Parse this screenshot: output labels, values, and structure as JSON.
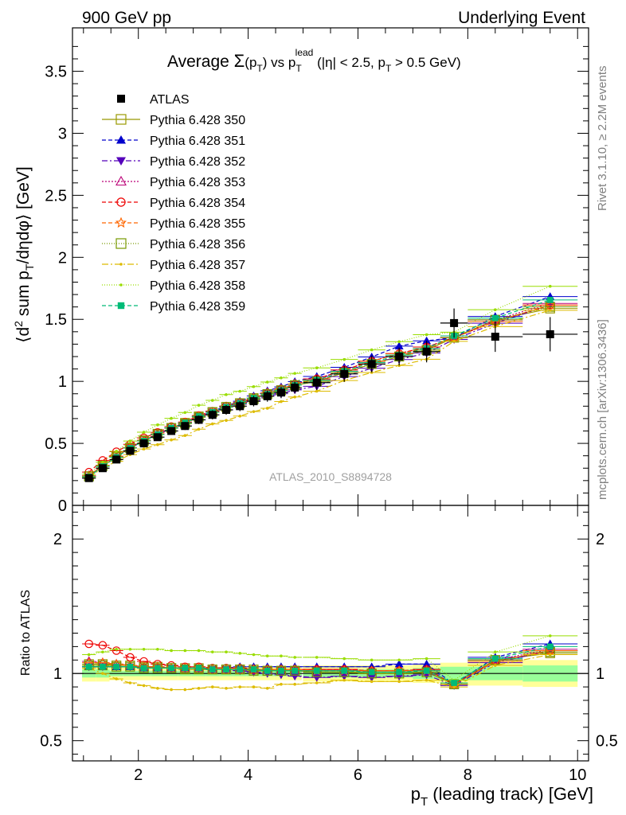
{
  "header": {
    "left": "900 GeV pp",
    "right": "Underlying Event"
  },
  "side": {
    "rivet": "Rivet 3.1.10, ≥ 2.2M events",
    "mcplots": "mcplots.cern.ch [arXiv:1306.3436]"
  },
  "watermark": "ATLAS_2010_S8894728",
  "chart_data": {
    "type": "scatter",
    "title": "Average Σ(p_T) vs p_T^lead (|η| < 2.5, p_T > 0.5 GeV)",
    "xlabel": "p_T (leading track) [GeV]",
    "ylabel": "⟨d² sum p_T/dηdφ⟩ [GeV]",
    "ratio_ylabel": "Ratio to ATLAS",
    "xlim": [
      0.8,
      10.2
    ],
    "ylim": [
      0,
      3.85
    ],
    "ratio_ylim": [
      0.35,
      2.25
    ],
    "xticks": [
      2,
      4,
      6,
      8,
      10
    ],
    "yticks": [
      0,
      0.5,
      1,
      1.5,
      2,
      2.5,
      3,
      3.5
    ],
    "ratio_yticks": [
      0.5,
      1,
      2
    ],
    "grid": false,
    "legend_position": "top-left",
    "x": [
      1.1,
      1.35,
      1.6,
      1.85,
      2.1,
      2.35,
      2.6,
      2.85,
      3.1,
      3.35,
      3.6,
      3.85,
      4.1,
      4.35,
      4.6,
      4.85,
      5.25,
      5.75,
      6.25,
      6.75,
      7.25,
      7.75,
      8.5,
      9.5
    ],
    "xerr": [
      0.125,
      0.125,
      0.125,
      0.125,
      0.125,
      0.125,
      0.125,
      0.125,
      0.125,
      0.125,
      0.125,
      0.125,
      0.125,
      0.125,
      0.125,
      0.125,
      0.25,
      0.25,
      0.25,
      0.25,
      0.25,
      0.25,
      0.5,
      0.5
    ],
    "data": {
      "name": "ATLAS",
      "values": [
        0.22,
        0.3,
        0.37,
        0.44,
        0.5,
        0.55,
        0.6,
        0.64,
        0.69,
        0.73,
        0.77,
        0.8,
        0.84,
        0.88,
        0.91,
        0.95,
        0.99,
        1.06,
        1.14,
        1.2,
        1.24,
        1.47,
        1.36,
        1.38
      ],
      "band_syst": [
        0.06,
        0.06,
        0.05,
        0.05,
        0.05,
        0.05,
        0.05,
        0.05,
        0.05,
        0.05,
        0.05,
        0.05,
        0.05,
        0.05,
        0.05,
        0.05,
        0.06,
        0.06,
        0.06,
        0.06,
        0.07,
        0.08,
        0.09,
        0.1
      ],
      "band_stat": [
        0.03,
        0.03,
        0.02,
        0.02,
        0.02,
        0.02,
        0.02,
        0.02,
        0.02,
        0.02,
        0.02,
        0.02,
        0.02,
        0.02,
        0.02,
        0.02,
        0.03,
        0.03,
        0.03,
        0.03,
        0.04,
        0.05,
        0.05,
        0.06
      ]
    },
    "series": [
      {
        "name": "Pythia 6.428 350",
        "color": "#999900",
        "marker": "square-open",
        "dash": "solid",
        "ratio": [
          1.07,
          1.07,
          1.06,
          1.06,
          1.05,
          1.05,
          1.04,
          1.04,
          1.04,
          1.03,
          1.03,
          1.03,
          1.03,
          1.02,
          1.02,
          1.02,
          1.01,
          1.01,
          1.0,
          1.0,
          1.01,
          0.92,
          1.1,
          1.15
        ]
      },
      {
        "name": "Pythia 6.428 351",
        "color": "#0000cc",
        "marker": "triangle-up",
        "dash": "5,3",
        "ratio": [
          1.05,
          1.05,
          1.05,
          1.05,
          1.04,
          1.04,
          1.04,
          1.04,
          1.04,
          1.04,
          1.04,
          1.05,
          1.05,
          1.05,
          1.05,
          1.05,
          1.05,
          1.05,
          1.05,
          1.07,
          1.07,
          0.92,
          1.12,
          1.22
        ]
      },
      {
        "name": "Pythia 6.428 352",
        "color": "#5500bb",
        "marker": "triangle-down",
        "dash": "7,3,2,3",
        "ratio": [
          1.05,
          1.05,
          1.05,
          1.05,
          1.04,
          1.04,
          1.04,
          1.04,
          1.04,
          1.03,
          1.03,
          1.02,
          1.01,
          1.0,
          0.99,
          0.98,
          0.97,
          0.98,
          0.97,
          0.98,
          0.99,
          0.91,
          1.08,
          1.17
        ]
      },
      {
        "name": "Pythia 6.428 353",
        "color": "#bb0077",
        "marker": "triangle-open",
        "dash": "2,2",
        "ratio": [
          1.09,
          1.08,
          1.07,
          1.06,
          1.05,
          1.05,
          1.04,
          1.04,
          1.04,
          1.03,
          1.03,
          1.03,
          1.03,
          1.03,
          1.03,
          1.03,
          1.03,
          1.03,
          1.02,
          1.02,
          1.03,
          0.92,
          1.1,
          1.18
        ]
      },
      {
        "name": "Pythia 6.428 354",
        "color": "#ee0000",
        "marker": "circle-open",
        "dash": "5,3",
        "ratio": [
          1.22,
          1.21,
          1.17,
          1.12,
          1.09,
          1.07,
          1.06,
          1.05,
          1.05,
          1.04,
          1.04,
          1.04,
          1.03,
          1.03,
          1.03,
          1.03,
          1.03,
          1.03,
          1.02,
          1.02,
          1.03,
          0.92,
          1.09,
          1.17
        ]
      },
      {
        "name": "Pythia 6.428 355",
        "color": "#ff6600",
        "marker": "star-open",
        "dash": "5,3",
        "ratio": [
          1.08,
          1.08,
          1.07,
          1.06,
          1.05,
          1.05,
          1.04,
          1.04,
          1.04,
          1.03,
          1.03,
          1.03,
          1.03,
          1.03,
          1.03,
          1.03,
          1.02,
          1.02,
          1.02,
          1.02,
          1.02,
          0.92,
          1.09,
          1.17
        ]
      },
      {
        "name": "Pythia 6.428 356",
        "color": "#779900",
        "marker": "square-open",
        "dash": "1,2",
        "ratio": [
          1.06,
          1.06,
          1.05,
          1.05,
          1.04,
          1.04,
          1.04,
          1.03,
          1.03,
          1.03,
          1.03,
          1.03,
          1.02,
          1.02,
          1.02,
          1.02,
          1.01,
          1.01,
          1.0,
          1.0,
          1.01,
          0.92,
          1.1,
          1.16
        ]
      },
      {
        "name": "Pythia 6.428 357",
        "color": "#ddbb00",
        "marker": "dot",
        "dash": "8,3,2,3",
        "ratio": [
          1.04,
          1.0,
          0.96,
          0.93,
          0.91,
          0.89,
          0.88,
          0.88,
          0.89,
          0.9,
          0.89,
          0.9,
          0.9,
          0.89,
          0.92,
          0.92,
          0.93,
          0.95,
          0.94,
          0.94,
          0.95,
          0.9,
          1.06,
          1.14
        ]
      },
      {
        "name": "Pythia 6.428 358",
        "color": "#99dd00",
        "marker": "dot",
        "dash": "1,2",
        "ratio": [
          1.14,
          1.16,
          1.18,
          1.18,
          1.18,
          1.18,
          1.17,
          1.17,
          1.17,
          1.16,
          1.16,
          1.15,
          1.14,
          1.13,
          1.13,
          1.12,
          1.12,
          1.11,
          1.1,
          1.1,
          1.11,
          0.95,
          1.16,
          1.28
        ]
      },
      {
        "name": "Pythia 6.428 359",
        "color": "#00bb77",
        "marker": "square-filled",
        "dash": "5,3",
        "ratio": [
          1.05,
          1.05,
          1.05,
          1.05,
          1.04,
          1.04,
          1.04,
          1.04,
          1.04,
          1.03,
          1.03,
          1.03,
          1.03,
          1.02,
          1.02,
          1.02,
          1.02,
          1.02,
          1.01,
          1.01,
          1.02,
          0.93,
          1.11,
          1.2
        ]
      }
    ]
  }
}
